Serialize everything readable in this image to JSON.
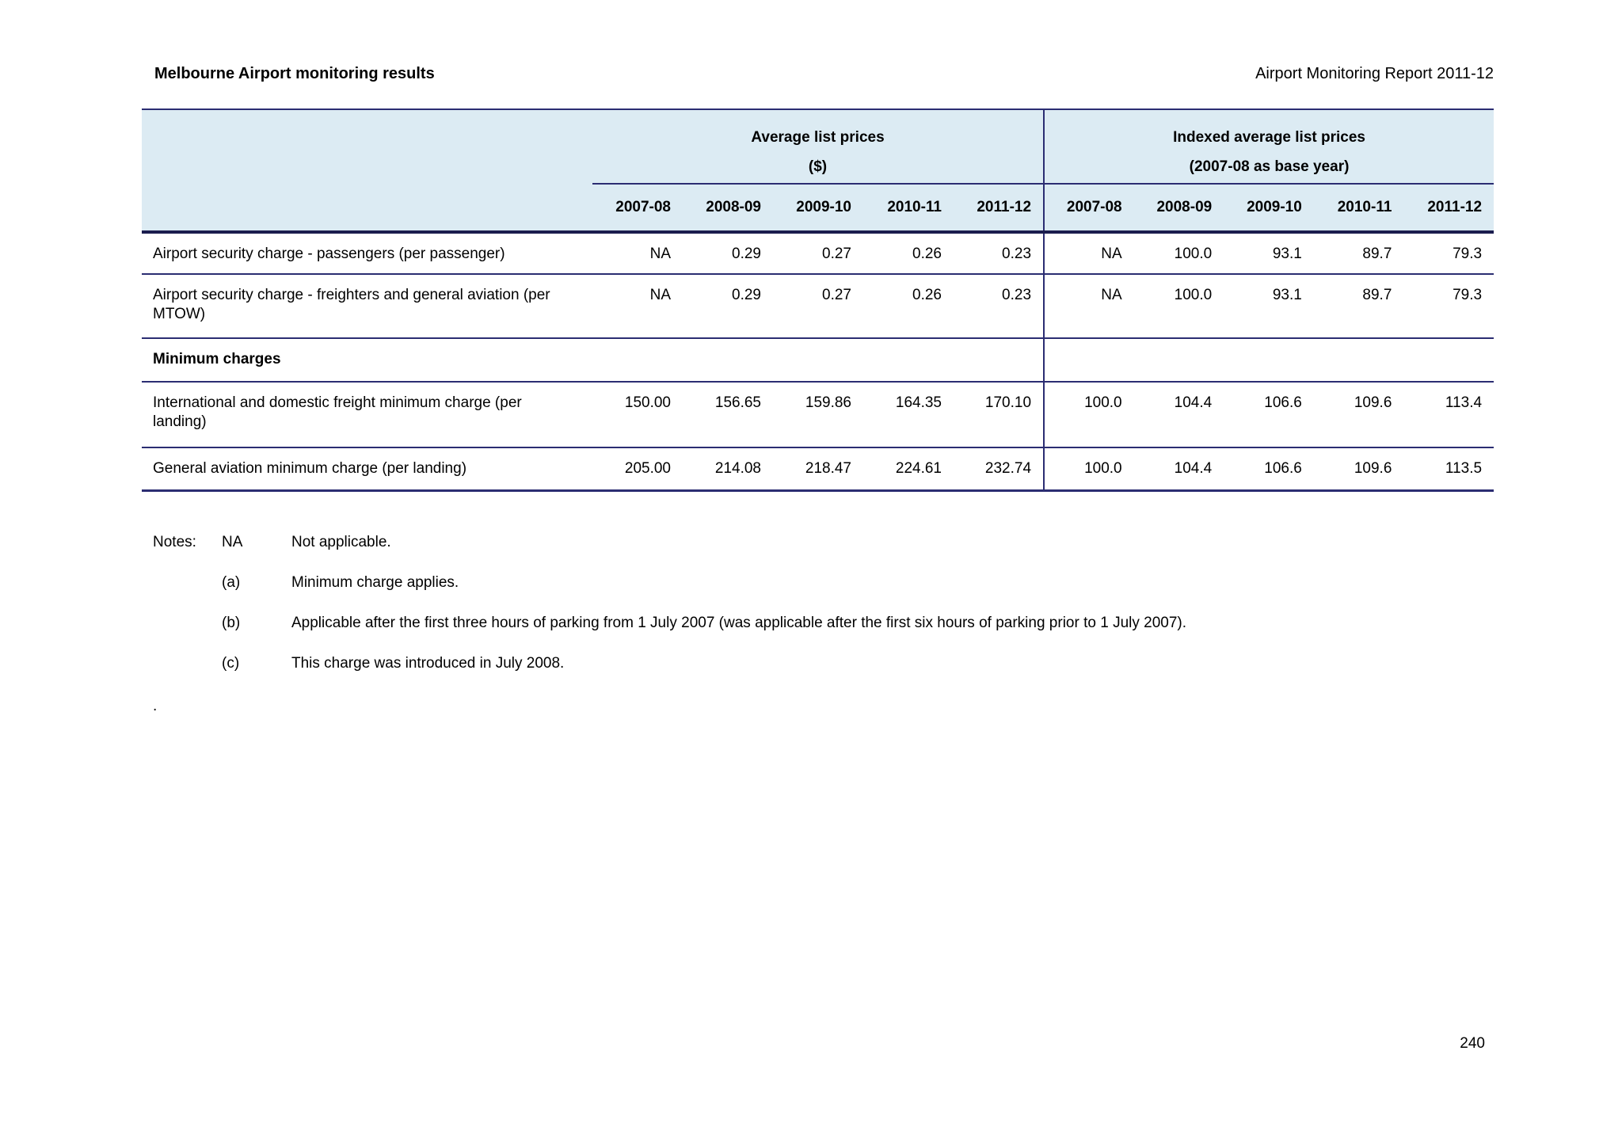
{
  "header": {
    "title_left": "Melbourne Airport monitoring results",
    "title_right": "Airport Monitoring Report 2011-12"
  },
  "table": {
    "group1": {
      "title": "Average list prices",
      "subtitle": "($)"
    },
    "group2": {
      "title": "Indexed average list prices",
      "subtitle": "(2007-08 as base year)"
    },
    "years": [
      "2007-08",
      "2008-09",
      "2009-10",
      "2010-11",
      "2011-12"
    ],
    "rows": [
      {
        "label": "Airport security charge - passengers (per passenger)",
        "type": "data",
        "prices": [
          "NA",
          "0.29",
          "0.27",
          "0.26",
          "0.23"
        ],
        "indexed": [
          "NA",
          "100.0",
          "93.1",
          "89.7",
          "79.3"
        ]
      },
      {
        "label": "Airport security charge - freighters and general aviation (per MTOW)",
        "type": "data",
        "prices": [
          "NA",
          "0.29",
          "0.27",
          "0.26",
          "0.23"
        ],
        "indexed": [
          "NA",
          "100.0",
          "93.1",
          "89.7",
          "79.3"
        ]
      },
      {
        "label": "Minimum charges",
        "type": "section",
        "prices": [
          "",
          "",
          "",
          "",
          ""
        ],
        "indexed": [
          "",
          "",
          "",
          "",
          ""
        ]
      },
      {
        "label": "International and domestic freight minimum charge (per landing)",
        "type": "data",
        "prices": [
          "150.00",
          "156.65",
          "159.86",
          "164.35",
          "170.10"
        ],
        "indexed": [
          "100.0",
          "104.4",
          "106.6",
          "109.6",
          "113.4"
        ]
      },
      {
        "label": "General aviation minimum charge (per landing)",
        "type": "data",
        "prices": [
          "205.00",
          "214.08",
          "218.47",
          "224.61",
          "232.74"
        ],
        "indexed": [
          "100.0",
          "104.4",
          "106.6",
          "109.6",
          "113.5"
        ]
      }
    ]
  },
  "notes": {
    "heading": "Notes:",
    "items": [
      {
        "marker": "NA",
        "text": "Not applicable."
      },
      {
        "marker": "(a)",
        "text": "Minimum charge applies."
      },
      {
        "marker": "(b)",
        "text": "Applicable after the first three hours of parking from 1 July 2007 (was applicable after the first six hours of parking prior to 1 July 2007)."
      },
      {
        "marker": "(c)",
        "text": "This charge was introduced in July 2008."
      }
    ]
  },
  "footer": {
    "stray_dot": ".",
    "page_number": "240"
  },
  "colors": {
    "header_band": "#dcebf3",
    "rule_line": "#2b2d72",
    "thick_rule": "#1b1d4e"
  }
}
